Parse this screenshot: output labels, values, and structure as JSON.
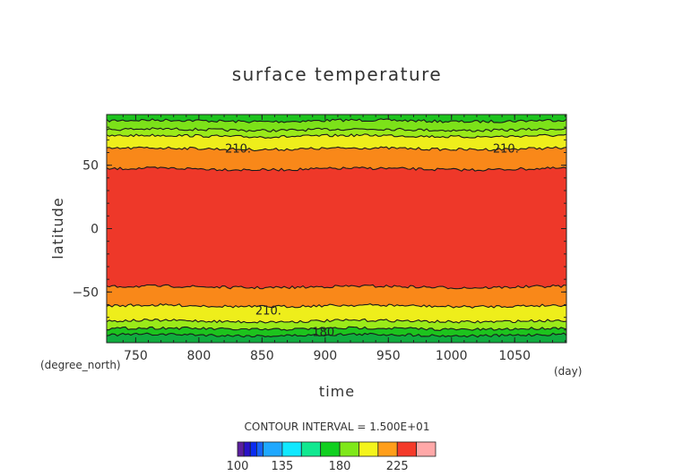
{
  "chart_data": {
    "type": "heatmap",
    "title": "surface temperature",
    "xlabel": "time",
    "ylabel": "latitude",
    "x_unit": "(day)",
    "y_unit": "(degree_north)",
    "xlim": [
      727,
      1091
    ],
    "ylim": [
      -90,
      90
    ],
    "x_ticks": [
      "750",
      "800",
      "850",
      "900",
      "950",
      "1000",
      "1050"
    ],
    "y_ticks": [
      "50",
      "0",
      "−50"
    ],
    "contour_note": "CONTOUR INTERVAL = 1.500E+01",
    "contour_labels": [
      {
        "text": "210.",
        "x": 831,
        "y": 63
      },
      {
        "text": "210.",
        "x": 1043,
        "y": 63
      },
      {
        "text": "210.",
        "x": 855,
        "y": -65
      },
      {
        "text": "180.",
        "x": 900,
        "y": -82
      }
    ],
    "colorbar_ticks": [
      "100",
      "135",
      "180",
      "225"
    ],
    "colorbar_levels": [
      100,
      105,
      110,
      115,
      120,
      135,
      150,
      165,
      180,
      195,
      210,
      225,
      240,
      255
    ],
    "colorbar_colors": [
      "#5a1f9e",
      "#2a12c8",
      "#0a2cf0",
      "#1463ff",
      "#1fa8ff",
      "#10e8ff",
      "#10e890",
      "#10d020",
      "#7fe81a",
      "#f4f41c",
      "#ff9e1a",
      "#f43a2a",
      "#ffa8a8"
    ],
    "bands": [
      {
        "lat_from": 85,
        "lat_to": 90,
        "value": "180-195",
        "color": "#1ec81e"
      },
      {
        "lat_from": 78,
        "lat_to": 85,
        "value": "195-210",
        "color": "#7fe81a"
      },
      {
        "lat_from": 73,
        "lat_to": 78,
        "value": "195-210",
        "color": "#9ef01a"
      },
      {
        "lat_from": 63,
        "lat_to": 73,
        "value": "210-225",
        "color": "#f4f41c"
      },
      {
        "lat_from": 47,
        "lat_to": 63,
        "value": "225-240",
        "color": "#ff8c1a"
      },
      {
        "lat_from": -46,
        "lat_to": 47,
        "value": "240-255",
        "color": "#f43a2a"
      },
      {
        "lat_from": -61,
        "lat_to": -46,
        "value": "225-240",
        "color": "#ff8c1a"
      },
      {
        "lat_from": -73,
        "lat_to": -61,
        "value": "210-225",
        "color": "#f4f41c"
      },
      {
        "lat_from": -79,
        "lat_to": -73,
        "value": "195-210",
        "color": "#9ef01a"
      },
      {
        "lat_from": -84,
        "lat_to": -79,
        "value": "180-195",
        "color": "#1ec81e"
      },
      {
        "lat_from": -90,
        "lat_to": -84,
        "value": "165-180",
        "color": "#10b040"
      }
    ],
    "contours": [
      85,
      78,
      73,
      63,
      47,
      -46,
      -61,
      -73,
      -79,
      -84
    ]
  }
}
